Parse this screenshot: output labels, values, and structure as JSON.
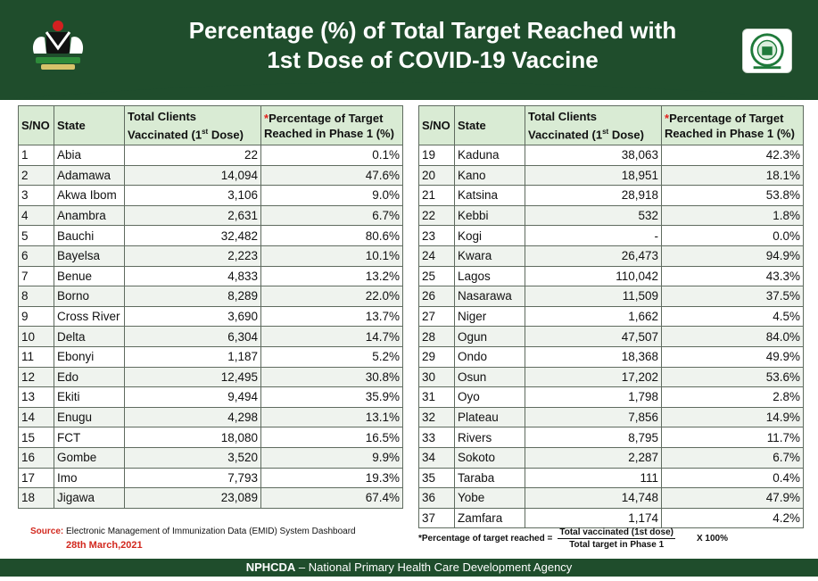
{
  "header": {
    "title_line1": "Percentage (%) of Total Target Reached with",
    "title_line2": "1st Dose of COVID-19 Vaccine"
  },
  "table": {
    "headers": {
      "sno": "S/NO",
      "state": "State",
      "clients_line1": "Total Clients",
      "clients_line2": "Vaccinated (1",
      "clients_sup": "st",
      "clients_line2_end": " Dose)",
      "pct_star": "*",
      "pct_line1": "Percentage of Target",
      "pct_line2": "Reached in Phase 1 (%)"
    },
    "left_rows": [
      {
        "sno": "1",
        "state": "Abia",
        "clients": "22",
        "pct": "0.1%"
      },
      {
        "sno": "2",
        "state": "Adamawa",
        "clients": "14,094",
        "pct": "47.6%"
      },
      {
        "sno": "3",
        "state": "Akwa Ibom",
        "clients": "3,106",
        "pct": "9.0%"
      },
      {
        "sno": "4",
        "state": "Anambra",
        "clients": "2,631",
        "pct": "6.7%"
      },
      {
        "sno": "5",
        "state": "Bauchi",
        "clients": "32,482",
        "pct": "80.6%"
      },
      {
        "sno": "6",
        "state": "Bayelsa",
        "clients": "2,223",
        "pct": "10.1%"
      },
      {
        "sno": "7",
        "state": "Benue",
        "clients": "4,833",
        "pct": "13.2%"
      },
      {
        "sno": "8",
        "state": "Borno",
        "clients": "8,289",
        "pct": "22.0%"
      },
      {
        "sno": "9",
        "state": "Cross River",
        "clients": "3,690",
        "pct": "13.7%"
      },
      {
        "sno": "10",
        "state": "Delta",
        "clients": "6,304",
        "pct": "14.7%"
      },
      {
        "sno": "11",
        "state": "Ebonyi",
        "clients": "1,187",
        "pct": "5.2%"
      },
      {
        "sno": "12",
        "state": "Edo",
        "clients": "12,495",
        "pct": "30.8%"
      },
      {
        "sno": "13",
        "state": "Ekiti",
        "clients": "9,494",
        "pct": "35.9%"
      },
      {
        "sno": "14",
        "state": "Enugu",
        "clients": "4,298",
        "pct": "13.1%"
      },
      {
        "sno": "15",
        "state": "FCT",
        "clients": "18,080",
        "pct": "16.5%"
      },
      {
        "sno": "16",
        "state": "Gombe",
        "clients": "3,520",
        "pct": "9.9%"
      },
      {
        "sno": "17",
        "state": "Imo",
        "clients": "7,793",
        "pct": "19.3%"
      },
      {
        "sno": "18",
        "state": "Jigawa",
        "clients": "23,089",
        "pct": "67.4%"
      }
    ],
    "right_rows": [
      {
        "sno": "19",
        "state": "Kaduna",
        "clients": "38,063",
        "pct": "42.3%"
      },
      {
        "sno": "20",
        "state": "Kano",
        "clients": "18,951",
        "pct": "18.1%"
      },
      {
        "sno": "21",
        "state": "Katsina",
        "clients": "28,918",
        "pct": "53.8%"
      },
      {
        "sno": "22",
        "state": "Kebbi",
        "clients": "532",
        "pct": "1.8%"
      },
      {
        "sno": "23",
        "state": "Kogi",
        "clients": "-",
        "pct": "0.0%"
      },
      {
        "sno": "24",
        "state": "Kwara",
        "clients": "26,473",
        "pct": "94.9%"
      },
      {
        "sno": "25",
        "state": "Lagos",
        "clients": "110,042",
        "pct": "43.3%"
      },
      {
        "sno": "26",
        "state": "Nasarawa",
        "clients": "11,509",
        "pct": "37.5%"
      },
      {
        "sno": "27",
        "state": "Niger",
        "clients": "1,662",
        "pct": "4.5%"
      },
      {
        "sno": "28",
        "state": "Ogun",
        "clients": "47,507",
        "pct": "84.0%"
      },
      {
        "sno": "29",
        "state": "Ondo",
        "clients": "18,368",
        "pct": "49.9%"
      },
      {
        "sno": "30",
        "state": "Osun",
        "clients": "17,202",
        "pct": "53.6%"
      },
      {
        "sno": "31",
        "state": "Oyo",
        "clients": "1,798",
        "pct": "2.8%"
      },
      {
        "sno": "32",
        "state": "Plateau",
        "clients": "7,856",
        "pct": "14.9%"
      },
      {
        "sno": "33",
        "state": "Rivers",
        "clients": "8,795",
        "pct": "11.7%"
      },
      {
        "sno": "34",
        "state": "Sokoto",
        "clients": "2,287",
        "pct": "6.7%"
      },
      {
        "sno": "35",
        "state": "Taraba",
        "clients": "111",
        "pct": "0.4%"
      },
      {
        "sno": "36",
        "state": "Yobe",
        "clients": "14,748",
        "pct": "47.9%"
      },
      {
        "sno": "37",
        "state": "Zamfara",
        "clients": "1,174",
        "pct": "4.2%"
      }
    ]
  },
  "source": {
    "label": "Source:",
    "text": " Electronic Management of Immunization Data (EMID) System Dashboard",
    "date": "28th March,2021"
  },
  "formula": {
    "lhs": "*Percentage of target reached =",
    "numerator": "Total vaccinated (1st dose)",
    "denominator": "Total target in Phase 1",
    "multiplier": "X  100%"
  },
  "footer": {
    "org_short": "NPHCDA",
    "org_rest": " – National Primary Health Care Development Agency"
  },
  "colors": {
    "brand_green": "#1f4d2c",
    "header_cell": "#d9ebd4",
    "accent_red": "#e0201c"
  }
}
